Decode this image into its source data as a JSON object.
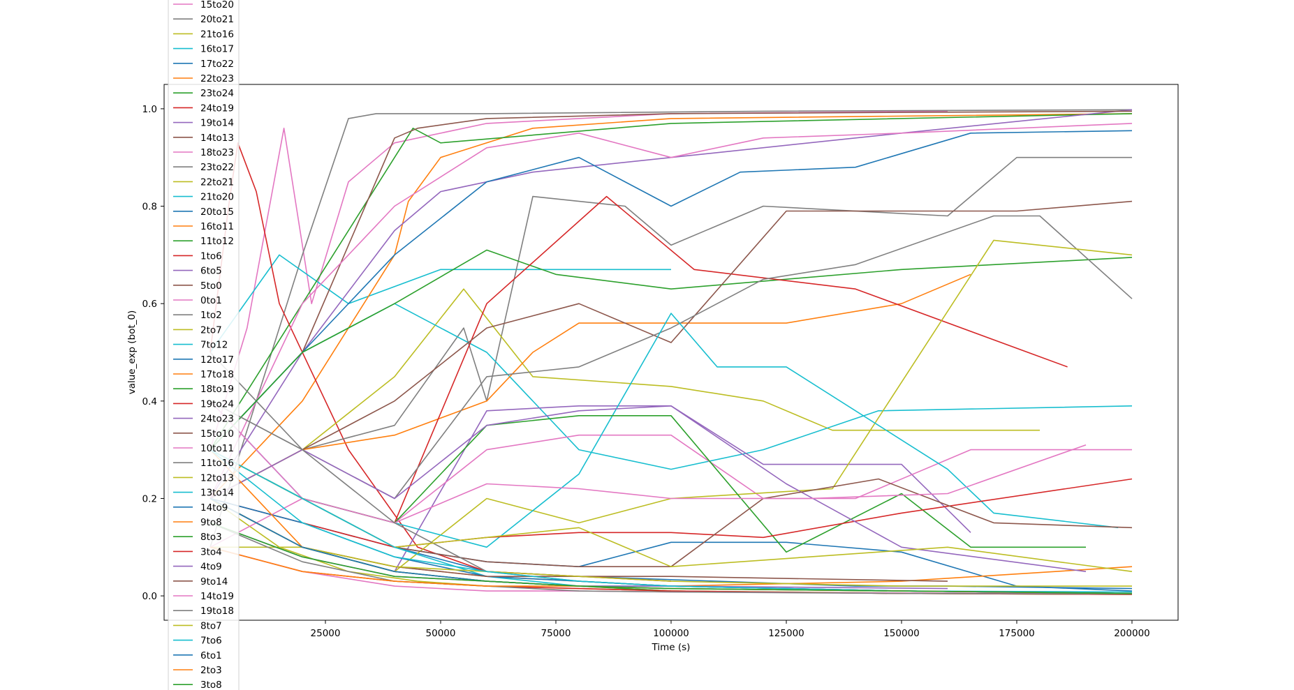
{
  "chart_data": {
    "type": "line",
    "xlabel": "Time (s)",
    "ylabel": "value_exp (bot_0)",
    "xlim": [
      -10000,
      210000
    ],
    "ylim": [
      -0.05,
      1.05
    ],
    "xticks": [
      25000,
      50000,
      75000,
      100000,
      125000,
      150000,
      175000,
      200000
    ],
    "yticks": [
      0.0,
      0.2,
      0.4,
      0.6,
      0.8,
      1.0
    ],
    "x_tick_labels": [
      "25000",
      "50000",
      "75000",
      "100000",
      "125000",
      "150000",
      "175000",
      "200000"
    ],
    "y_tick_labels": [
      "0.0",
      "0.2",
      "0.4",
      "0.6",
      "0.8",
      "1.0"
    ],
    "grid": false,
    "legend_position": "upper-left, overflowing outside the axes",
    "series": [
      {
        "name": "15to20",
        "color": "#e377c2",
        "x": [
          0,
          8000,
          16000,
          22000,
          30000,
          40000,
          60000,
          100000,
          160000
        ],
        "y": [
          0.3,
          0.55,
          0.96,
          0.6,
          0.85,
          0.93,
          0.97,
          0.99,
          0.995
        ]
      },
      {
        "name": "20to21",
        "color": "#7f7f7f",
        "x": [
          0,
          10000,
          20000,
          30000,
          36000,
          40000,
          60000,
          120000,
          200000
        ],
        "y": [
          0.1,
          0.4,
          0.7,
          0.98,
          0.99,
          0.99,
          0.99,
          0.995,
          0.998
        ]
      },
      {
        "name": "21to16",
        "color": "#bcbd22",
        "x": [
          0,
          15000,
          30000,
          45000,
          60000,
          100000,
          160000
        ],
        "y": [
          0.2,
          0.1,
          0.05,
          0.03,
          0.02,
          0.01,
          0.005
        ]
      },
      {
        "name": "16to17",
        "color": "#17becf",
        "x": [
          0,
          15000,
          30000,
          50000,
          70000,
          100000
        ],
        "y": [
          0.5,
          0.7,
          0.6,
          0.67,
          0.67,
          0.67
        ]
      },
      {
        "name": "17to22",
        "color": "#1f77b4",
        "x": [
          0,
          20000,
          40000,
          60000,
          80000,
          110000,
          140000,
          160000,
          200000
        ],
        "y": [
          0.4,
          0.2,
          0.1,
          0.05,
          0.04,
          0.03,
          0.02,
          0.02,
          0.015
        ]
      },
      {
        "name": "22to23",
        "color": "#ff7f0e",
        "x": [
          0,
          20000,
          40000,
          43000,
          50000,
          70000,
          100000,
          200000
        ],
        "y": [
          0.2,
          0.4,
          0.7,
          0.81,
          0.9,
          0.96,
          0.98,
          0.99
        ]
      },
      {
        "name": "23to24",
        "color": "#2ca02c",
        "x": [
          0,
          20000,
          40000,
          44000,
          50000,
          100000,
          200000
        ],
        "y": [
          0.3,
          0.6,
          0.9,
          0.96,
          0.93,
          0.97,
          0.99
        ]
      },
      {
        "name": "24to19",
        "color": "#d62728",
        "x": [
          0,
          4000,
          6000,
          10000,
          15000,
          30000,
          45000,
          60000,
          100000
        ],
        "y": [
          0.5,
          0.8,
          0.93,
          0.83,
          0.6,
          0.3,
          0.1,
          0.05,
          0.03
        ]
      },
      {
        "name": "19to14",
        "color": "#9467bd",
        "x": [
          0,
          20000,
          40000,
          50000,
          70000,
          100000,
          150000,
          200000
        ],
        "y": [
          0.2,
          0.5,
          0.75,
          0.83,
          0.87,
          0.9,
          0.95,
          0.998
        ]
      },
      {
        "name": "14to13",
        "color": "#8c564b",
        "x": [
          0,
          20000,
          40000,
          45000,
          60000,
          100000,
          200000
        ],
        "y": [
          0.3,
          0.5,
          0.94,
          0.96,
          0.98,
          0.99,
          0.995
        ]
      },
      {
        "name": "18to23",
        "color": "#e377c2",
        "x": [
          0,
          20000,
          40000,
          60000,
          80000,
          100000,
          120000,
          150000,
          200000
        ],
        "y": [
          0.2,
          0.6,
          0.8,
          0.92,
          0.95,
          0.9,
          0.94,
          0.95,
          0.97
        ]
      },
      {
        "name": "23to22",
        "color": "#7f7f7f",
        "x": [
          0,
          20000,
          40000,
          55000,
          60000,
          70000,
          90000,
          100000,
          120000,
          160000,
          175000,
          200000
        ],
        "y": [
          0.5,
          0.3,
          0.35,
          0.55,
          0.4,
          0.82,
          0.8,
          0.72,
          0.8,
          0.78,
          0.9,
          0.9
        ]
      },
      {
        "name": "22to21",
        "color": "#bcbd22",
        "x": [
          0,
          20000,
          40000,
          55000,
          70000,
          100000,
          120000,
          135000,
          180000
        ],
        "y": [
          0.2,
          0.3,
          0.45,
          0.63,
          0.45,
          0.43,
          0.4,
          0.34,
          0.34
        ]
      },
      {
        "name": "21to20",
        "color": "#17becf",
        "x": [
          0,
          20000,
          40000,
          60000,
          80000,
          100000,
          120000,
          145000,
          200000
        ],
        "y": [
          0.3,
          0.5,
          0.6,
          0.5,
          0.3,
          0.26,
          0.3,
          0.38,
          0.39
        ]
      },
      {
        "name": "20to15",
        "color": "#1f77b4",
        "x": [
          0,
          20000,
          40000,
          60000,
          80000,
          100000,
          115000,
          140000,
          165000,
          200000
        ],
        "y": [
          0.3,
          0.5,
          0.7,
          0.85,
          0.9,
          0.8,
          0.87,
          0.88,
          0.95,
          0.955
        ]
      },
      {
        "name": "16to11",
        "color": "#ff7f0e",
        "x": [
          0,
          20000,
          40000,
          60000,
          70000,
          80000,
          100000,
          125000,
          150000,
          165000
        ],
        "y": [
          0.2,
          0.3,
          0.33,
          0.4,
          0.5,
          0.56,
          0.56,
          0.56,
          0.6,
          0.66
        ]
      },
      {
        "name": "11to12",
        "color": "#2ca02c",
        "x": [
          0,
          20000,
          40000,
          60000,
          75000,
          100000,
          150000,
          200000
        ],
        "y": [
          0.3,
          0.5,
          0.6,
          0.71,
          0.66,
          0.63,
          0.67,
          0.695
        ]
      },
      {
        "name": "1to6",
        "color": "#d62728",
        "x": [
          0,
          20000,
          40000,
          60000,
          86000,
          105000,
          140000,
          186000
        ],
        "y": [
          0.3,
          0.2,
          0.15,
          0.6,
          0.82,
          0.67,
          0.63,
          0.47
        ]
      },
      {
        "name": "6to5",
        "color": "#9467bd",
        "x": [
          0,
          20000,
          40000,
          60000,
          80000,
          100000,
          120000,
          150000,
          165000
        ],
        "y": [
          0.2,
          0.1,
          0.05,
          0.38,
          0.39,
          0.39,
          0.27,
          0.27,
          0.13
        ]
      },
      {
        "name": "5to0",
        "color": "#8c564b",
        "x": [
          0,
          20000,
          40000,
          60000,
          80000,
          100000,
          125000,
          150000,
          175000,
          200000
        ],
        "y": [
          0.2,
          0.3,
          0.4,
          0.55,
          0.6,
          0.52,
          0.79,
          0.79,
          0.79,
          0.81
        ]
      },
      {
        "name": "0to1",
        "color": "#e377c2",
        "x": [
          0,
          20000,
          40000,
          60000,
          80000,
          100000,
          120000,
          140000,
          165000,
          180000,
          200000
        ],
        "y": [
          0.4,
          0.2,
          0.15,
          0.3,
          0.33,
          0.33,
          0.2,
          0.2,
          0.3,
          0.3,
          0.3
        ]
      },
      {
        "name": "1to2",
        "color": "#7f7f7f",
        "x": [
          0,
          20000,
          40000,
          60000,
          80000,
          100000,
          120000,
          140000,
          170000,
          180000,
          200000
        ],
        "y": [
          0.4,
          0.3,
          0.2,
          0.45,
          0.47,
          0.55,
          0.65,
          0.68,
          0.78,
          0.78,
          0.61
        ]
      },
      {
        "name": "2to7",
        "color": "#bcbd22",
        "x": [
          0,
          20000,
          40000,
          60000,
          80000,
          100000,
          135000,
          170000,
          200000
        ],
        "y": [
          0.1,
          0.1,
          0.05,
          0.2,
          0.15,
          0.2,
          0.22,
          0.73,
          0.7
        ]
      },
      {
        "name": "7to12",
        "color": "#17becf",
        "x": [
          0,
          20000,
          40000,
          60000,
          80000,
          100000,
          110000,
          125000,
          160000,
          170000,
          197000
        ],
        "y": [
          0.3,
          0.2,
          0.15,
          0.1,
          0.25,
          0.58,
          0.47,
          0.47,
          0.26,
          0.17,
          0.14
        ]
      },
      {
        "name": "12to17",
        "color": "#1f77b4",
        "x": [
          0,
          20000,
          40000,
          60000,
          80000,
          100000,
          125000,
          150000,
          175000,
          200000
        ],
        "y": [
          0.2,
          0.15,
          0.1,
          0.07,
          0.06,
          0.11,
          0.11,
          0.09,
          0.02,
          0.01
        ]
      },
      {
        "name": "17to18",
        "color": "#ff7f0e",
        "x": [
          0,
          20000,
          40000,
          60000,
          80000,
          100000,
          150000,
          200000
        ],
        "y": [
          0.2,
          0.1,
          0.06,
          0.04,
          0.03,
          0.02,
          0.03,
          0.06
        ]
      },
      {
        "name": "18to19",
        "color": "#2ca02c",
        "x": [
          0,
          20000,
          40000,
          60000,
          80000,
          100000,
          125000,
          150000,
          165000,
          190000
        ],
        "y": [
          0.3,
          0.2,
          0.15,
          0.35,
          0.37,
          0.37,
          0.09,
          0.21,
          0.1,
          0.1
        ]
      },
      {
        "name": "19to24",
        "color": "#d62728",
        "x": [
          0,
          20000,
          40000,
          60000,
          80000,
          100000,
          120000,
          150000,
          200000
        ],
        "y": [
          0.2,
          0.15,
          0.1,
          0.12,
          0.13,
          0.13,
          0.12,
          0.17,
          0.24
        ]
      },
      {
        "name": "24to23",
        "color": "#9467bd",
        "x": [
          0,
          20000,
          40000,
          60000,
          80000,
          100000,
          125000,
          150000,
          190000
        ],
        "y": [
          0.2,
          0.3,
          0.2,
          0.35,
          0.38,
          0.39,
          0.23,
          0.1,
          0.05
        ]
      },
      {
        "name": "15to10",
        "color": "#8c564b",
        "x": [
          0,
          20000,
          40000,
          60000,
          80000,
          100000,
          120000,
          145000,
          170000,
          200000
        ],
        "y": [
          0.3,
          0.2,
          0.1,
          0.07,
          0.06,
          0.06,
          0.2,
          0.24,
          0.15,
          0.14
        ]
      },
      {
        "name": "10to11",
        "color": "#e377c2",
        "x": [
          0,
          20000,
          40000,
          60000,
          80000,
          100000,
          130000,
          160000,
          190000
        ],
        "y": [
          0.1,
          0.2,
          0.15,
          0.23,
          0.22,
          0.2,
          0.2,
          0.21,
          0.31
        ]
      },
      {
        "name": "11to16",
        "color": "#7f7f7f",
        "x": [
          0,
          20000,
          40000,
          60000,
          80000,
          100000,
          150000,
          200000
        ],
        "y": [
          0.4,
          0.3,
          0.15,
          0.05,
          0.03,
          0.02,
          0.01,
          0.005
        ]
      },
      {
        "name": "12to13",
        "color": "#bcbd22",
        "x": [
          0,
          20000,
          40000,
          60000,
          80000,
          100000,
          130000,
          160000,
          200000
        ],
        "y": [
          0.3,
          0.2,
          0.1,
          0.12,
          0.14,
          0.06,
          0.08,
          0.1,
          0.05
        ]
      },
      {
        "name": "13to14",
        "color": "#17becf",
        "x": [
          0,
          20000,
          40000,
          60000,
          80000,
          100000,
          150000,
          200000
        ],
        "y": [
          0.3,
          0.2,
          0.1,
          0.04,
          0.02,
          0.02,
          0.01,
          0.005
        ]
      },
      {
        "name": "14to9",
        "color": "#1f77b4",
        "x": [
          0,
          20000,
          40000,
          60000,
          80000,
          100000,
          150000,
          200000
        ],
        "y": [
          0.2,
          0.15,
          0.08,
          0.04,
          0.03,
          0.02,
          0.01,
          0.005
        ]
      },
      {
        "name": "9to8",
        "color": "#ff7f0e",
        "x": [
          0,
          20000,
          40000,
          60000,
          80000,
          100000,
          150000,
          200000
        ],
        "y": [
          0.3,
          0.1,
          0.05,
          0.03,
          0.02,
          0.01,
          0.005,
          0.003
        ]
      },
      {
        "name": "8to3",
        "color": "#2ca02c",
        "x": [
          0,
          20000,
          40000,
          60000,
          80000,
          100000,
          150000,
          200000
        ],
        "y": [
          0.2,
          0.1,
          0.05,
          0.03,
          0.02,
          0.01,
          0.005,
          0.003
        ]
      },
      {
        "name": "3to4",
        "color": "#d62728",
        "x": [
          0,
          20000,
          40000,
          60000,
          80000,
          100000,
          150000,
          200000
        ],
        "y": [
          0.1,
          0.05,
          0.03,
          0.02,
          0.015,
          0.01,
          0.005,
          0.003
        ]
      },
      {
        "name": "4to9",
        "color": "#9467bd",
        "x": [
          0,
          20000,
          40000,
          60000,
          80000,
          100000,
          160000
        ],
        "y": [
          0.15,
          0.08,
          0.04,
          0.03,
          0.02,
          0.02,
          0.015
        ]
      },
      {
        "name": "9to14",
        "color": "#8c564b",
        "x": [
          0,
          20000,
          40000,
          60000,
          80000,
          100000,
          160000
        ],
        "y": [
          0.2,
          0.1,
          0.06,
          0.04,
          0.04,
          0.04,
          0.03
        ]
      },
      {
        "name": "14to19",
        "color": "#e377c2",
        "x": [
          0,
          20000,
          40000,
          60000,
          80000,
          100000,
          150000,
          200000
        ],
        "y": [
          0.1,
          0.05,
          0.02,
          0.01,
          0.01,
          0.008,
          0.006,
          0.005
        ]
      },
      {
        "name": "19to18",
        "color": "#7f7f7f",
        "x": [
          0,
          20000,
          40000,
          60000,
          80000,
          100000,
          150000,
          200000
        ],
        "y": [
          0.15,
          0.07,
          0.03,
          0.02,
          0.01,
          0.008,
          0.005,
          0.004
        ]
      },
      {
        "name": "8to7",
        "color": "#bcbd22",
        "x": [
          0,
          20000,
          40000,
          60000,
          80000,
          100000,
          150000,
          200000
        ],
        "y": [
          0.2,
          0.1,
          0.06,
          0.05,
          0.04,
          0.03,
          0.02,
          0.02
        ]
      },
      {
        "name": "7to6",
        "color": "#17becf",
        "x": [
          0,
          20000,
          40000,
          60000,
          80000,
          100000,
          150000,
          200000
        ],
        "y": [
          0.3,
          0.15,
          0.08,
          0.05,
          0.03,
          0.02,
          0.01,
          0.008
        ]
      },
      {
        "name": "6to1",
        "color": "#1f77b4",
        "x": [
          0,
          20000,
          40000,
          60000,
          80000,
          100000,
          150000,
          200000
        ],
        "y": [
          0.2,
          0.1,
          0.05,
          0.03,
          0.02,
          0.015,
          0.01,
          0.005
        ]
      },
      {
        "name": "2to3",
        "color": "#ff7f0e",
        "x": [
          0,
          20000,
          40000,
          60000,
          80000,
          100000,
          150000,
          200000
        ],
        "y": [
          0.1,
          0.05,
          0.03,
          0.02,
          0.02,
          0.015,
          0.01,
          0.005
        ]
      },
      {
        "name": "3to8",
        "color": "#2ca02c",
        "x": [
          0,
          20000,
          40000,
          60000,
          80000,
          100000,
          150000,
          200000
        ],
        "y": [
          0.15,
          0.08,
          0.04,
          0.03,
          0.02,
          0.015,
          0.01,
          0.005
        ]
      }
    ]
  }
}
